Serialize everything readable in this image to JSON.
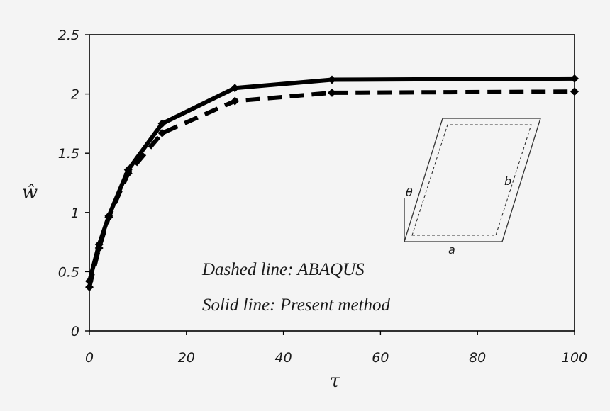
{
  "chart_data": {
    "type": "line",
    "xlabel": "τ",
    "ylabel": "ŵ",
    "xlim": [
      0,
      100
    ],
    "ylim": [
      0,
      2.5
    ],
    "x_ticks": [
      "0",
      "20",
      "40",
      "60",
      "80",
      "100"
    ],
    "y_ticks": [
      "0",
      "0.5",
      "1",
      "1.5",
      "2",
      "2.5"
    ],
    "grid": false,
    "series": [
      {
        "style": "solid",
        "marker": "diamond",
        "x": [
          0,
          2,
          4,
          8,
          15,
          30,
          50,
          100
        ],
        "y": [
          0.42,
          0.73,
          0.97,
          1.36,
          1.75,
          2.05,
          2.12,
          2.13
        ]
      },
      {
        "style": "dashed",
        "marker": "diamond",
        "x": [
          0,
          2,
          4,
          8,
          15,
          30,
          50,
          100
        ],
        "y": [
          0.37,
          0.7,
          0.96,
          1.33,
          1.67,
          1.94,
          2.01,
          2.02
        ]
      }
    ],
    "annotations": [
      "Dashed line: ABAQUS",
      "Solid line: Present method"
    ],
    "inset": {
      "labels": {
        "angle": "θ",
        "side_a": "a",
        "side_b": "b"
      }
    }
  },
  "colors": {
    "background": "#f4f4f4",
    "ink": "#000000"
  }
}
